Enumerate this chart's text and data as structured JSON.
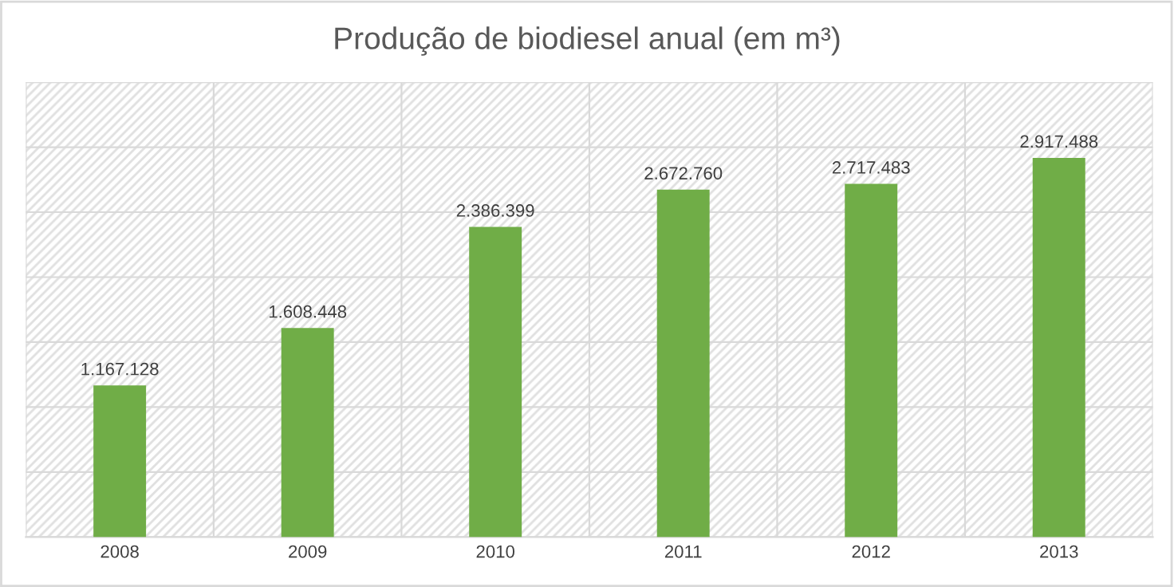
{
  "chart_data": {
    "type": "bar",
    "title": "Produção de biodiesel anual (em m³)",
    "categories": [
      "2008",
      "2009",
      "2010",
      "2011",
      "2012",
      "2013"
    ],
    "values": [
      1167128,
      1608448,
      2386399,
      2672760,
      2717483,
      2917488
    ],
    "value_labels": [
      "1.167.128",
      "1.608.448",
      "2.386.399",
      "2.672.760",
      "2.717.483",
      "2.917.488"
    ],
    "color": "#70ad47",
    "ylim": [
      0,
      3500000
    ],
    "yticks": [
      {
        "value": 0,
        "label": null
      },
      {
        "value": 500000,
        "label": null
      },
      {
        "value": 1000000,
        "label": null
      },
      {
        "value": 1500000,
        "label": null
      },
      {
        "value": 2000000,
        "label": null
      },
      {
        "value": 2500000,
        "label": null
      },
      {
        "value": 3000000,
        "label": null
      },
      {
        "value": 3500000,
        "label": null
      }
    ],
    "tick_labels": "x",
    "grid": true,
    "legend": false
  }
}
